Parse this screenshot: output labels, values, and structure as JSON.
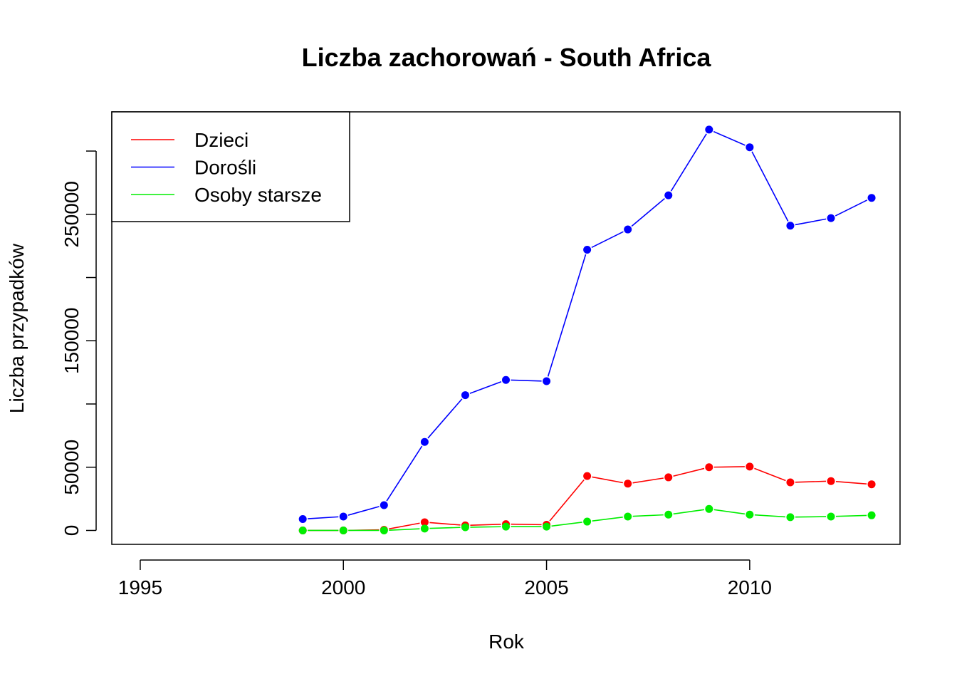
{
  "chart_data": {
    "type": "line",
    "title": "Liczba zachorowań -  South Africa",
    "xlabel": "Rok",
    "ylabel": "Liczba przypadków",
    "xlim": [
      1994.3,
      2013.7
    ],
    "ylim": [
      -11000,
      331000
    ],
    "x_ticks": [
      1995,
      2000,
      2005,
      2010
    ],
    "y_ticks": [
      0,
      50000,
      100000,
      150000,
      200000,
      250000,
      300000
    ],
    "y_tick_labels": [
      "0",
      "50000",
      "",
      "150000",
      "",
      "250000",
      ""
    ],
    "grid": false,
    "legend_position": "top-left",
    "x": [
      1999,
      2000,
      2001,
      2002,
      2003,
      2004,
      2005,
      2006,
      2007,
      2008,
      2009,
      2010,
      2011,
      2012,
      2013
    ],
    "series": [
      {
        "name": "Dzieci",
        "color": "#ff0000",
        "values": [
          0,
          0,
          500,
          6500,
          4000,
          5000,
          4500,
          43000,
          37000,
          42000,
          50000,
          50500,
          38000,
          39000,
          36500
        ]
      },
      {
        "name": "Dorośli",
        "color": "#0000ff",
        "values": [
          9000,
          11000,
          20000,
          70000,
          107000,
          119000,
          118000,
          222000,
          238000,
          265000,
          317000,
          303000,
          241000,
          247000,
          263000
        ]
      },
      {
        "name": "Osoby starsze",
        "color": "#00ee00",
        "values": [
          0,
          0,
          0,
          1500,
          2500,
          3000,
          3000,
          7000,
          11000,
          12500,
          17000,
          12500,
          10500,
          11000,
          12000
        ]
      }
    ]
  }
}
